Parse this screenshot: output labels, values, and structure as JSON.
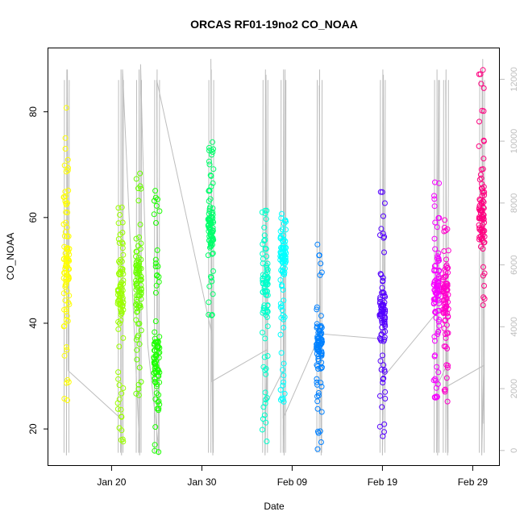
{
  "chart_data": {
    "type": "scatter",
    "title": "ORCAS RF01-19no2 CO_NOAA",
    "xlabel": "Date",
    "ylabel": "CO_NOAA",
    "xlim": [
      "2016-01-13",
      "2016-03-03"
    ],
    "ylim": [
      13,
      92
    ],
    "x_ticks": [
      "Jan 20",
      "Jan 30",
      "Feb 09",
      "Feb 19",
      "Feb 29"
    ],
    "x_tick_dates": [
      "2016-01-20",
      "2016-01-30",
      "2016-02-09",
      "2016-02-19",
      "2016-02-29"
    ],
    "y_ticks": [
      20,
      40,
      60,
      80
    ],
    "y2_ticks": [
      0,
      2000,
      4000,
      6000,
      8000,
      10000,
      12000
    ],
    "y2lim": [
      -500,
      13000
    ],
    "grid": false,
    "legend": "none",
    "series": [
      {
        "date": "2016-01-15",
        "color": "#FFFF00",
        "min": 24,
        "max": 81,
        "center": 50
      },
      {
        "date": "2016-01-21",
        "color": "#9BFF00",
        "min": 17,
        "max": 67,
        "center": 46
      },
      {
        "date": "2016-01-23",
        "color": "#6BFF00",
        "min": 26,
        "max": 70,
        "center": 48
      },
      {
        "date": "2016-01-25",
        "color": "#1CFF00",
        "min": 15,
        "max": 66,
        "center": 32
      },
      {
        "date": "2016-01-31",
        "color": "#00FF6B",
        "min": 41,
        "max": 75,
        "center": 58
      },
      {
        "date": "2016-02-06",
        "color": "#00FFCC",
        "min": 17,
        "max": 62,
        "center": 47
      },
      {
        "date": "2016-02-08",
        "color": "#00FFFF",
        "min": 25,
        "max": 61,
        "center": 52
      },
      {
        "date": "2016-02-12",
        "color": "#0080FF",
        "min": 16,
        "max": 55,
        "center": 36
      },
      {
        "date": "2016-02-19",
        "color": "#5500FF",
        "min": 18,
        "max": 65,
        "center": 42
      },
      {
        "date": "2016-02-25",
        "color": "#F500FF",
        "min": 25,
        "max": 67,
        "center": 47
      },
      {
        "date": "2016-02-26",
        "color": "#FF00CC",
        "min": 25,
        "max": 60,
        "center": 45
      },
      {
        "date": "2016-03-01",
        "color": "#FF0080",
        "min": 43,
        "max": 90,
        "center": 60
      }
    ],
    "altitude_trace": {
      "color": "#bdbdbd",
      "note": "secondary axis (right) trace shown in gray",
      "points": [
        [
          "2016-01-15",
          15
        ],
        [
          "2016-01-15",
          88
        ],
        [
          "2016-01-15",
          31
        ],
        [
          "2016-01-21",
          22
        ],
        [
          "2016-01-21",
          15
        ],
        [
          "2016-01-21",
          88
        ],
        [
          "2016-01-23",
          20
        ],
        [
          "2016-01-23",
          15
        ],
        [
          "2016-01-23",
          89
        ],
        [
          "2016-01-24",
          36
        ],
        [
          "2016-01-25",
          18
        ],
        [
          "2016-01-25",
          15
        ],
        [
          "2016-01-25",
          86
        ],
        [
          "2016-01-31",
          38
        ],
        [
          "2016-01-31",
          15
        ],
        [
          "2016-01-31",
          90
        ],
        [
          "2016-01-31",
          29
        ],
        [
          "2016-02-06",
          35
        ],
        [
          "2016-02-06",
          15
        ],
        [
          "2016-02-06",
          87
        ],
        [
          "2016-02-06",
          25
        ],
        [
          "2016-02-08",
          31
        ],
        [
          "2016-02-08",
          15
        ],
        [
          "2016-02-08",
          88
        ],
        [
          "2016-02-08",
          22
        ],
        [
          "2016-02-12",
          38
        ],
        [
          "2016-02-12",
          15
        ],
        [
          "2016-02-12",
          85
        ],
        [
          "2016-02-12",
          38
        ],
        [
          "2016-02-19",
          37
        ],
        [
          "2016-02-19",
          15
        ],
        [
          "2016-02-19",
          87
        ],
        [
          "2016-02-19",
          30
        ],
        [
          "2016-02-25",
          42
        ],
        [
          "2016-02-25",
          15
        ],
        [
          "2016-02-25",
          86
        ],
        [
          "2016-02-25",
          28
        ],
        [
          "2016-02-26",
          32
        ],
        [
          "2016-02-26",
          15
        ],
        [
          "2016-02-26",
          86
        ],
        [
          "2016-02-26",
          28
        ],
        [
          "2016-03-01",
          32
        ],
        [
          "2016-03-01",
          15
        ],
        [
          "2016-03-01",
          90
        ],
        [
          "2016-03-01",
          21
        ]
      ]
    }
  }
}
